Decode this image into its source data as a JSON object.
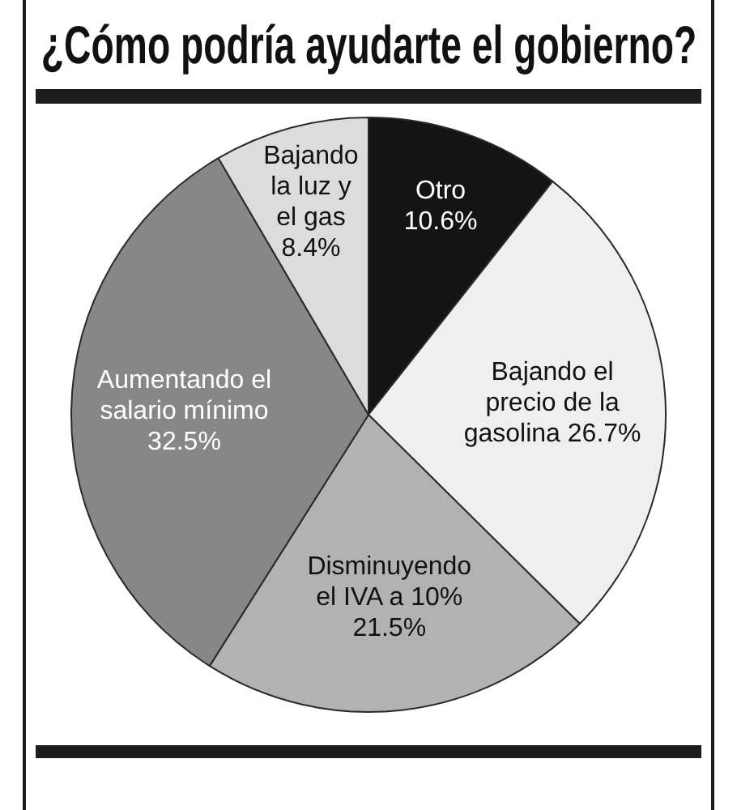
{
  "chart_data": {
    "type": "pie",
    "title": "¿Cómo podría ayudarte el gobierno?",
    "categories": [
      "Otro",
      "Bajando el precio de la gasolina",
      "Disminuyendo el IVA a 10%",
      "Aumentando el salario mínimo",
      "Bajando la luz y el gas"
    ],
    "values": [
      10.6,
      26.7,
      21.5,
      32.5,
      8.4
    ],
    "value_labels": [
      "10.6%",
      "26.7%",
      "21.5%",
      "32.5%",
      "8.4%"
    ],
    "colors": [
      "#141414",
      "#efefef",
      "#b2b2b2",
      "#878787",
      "#dcdcdc"
    ]
  }
}
